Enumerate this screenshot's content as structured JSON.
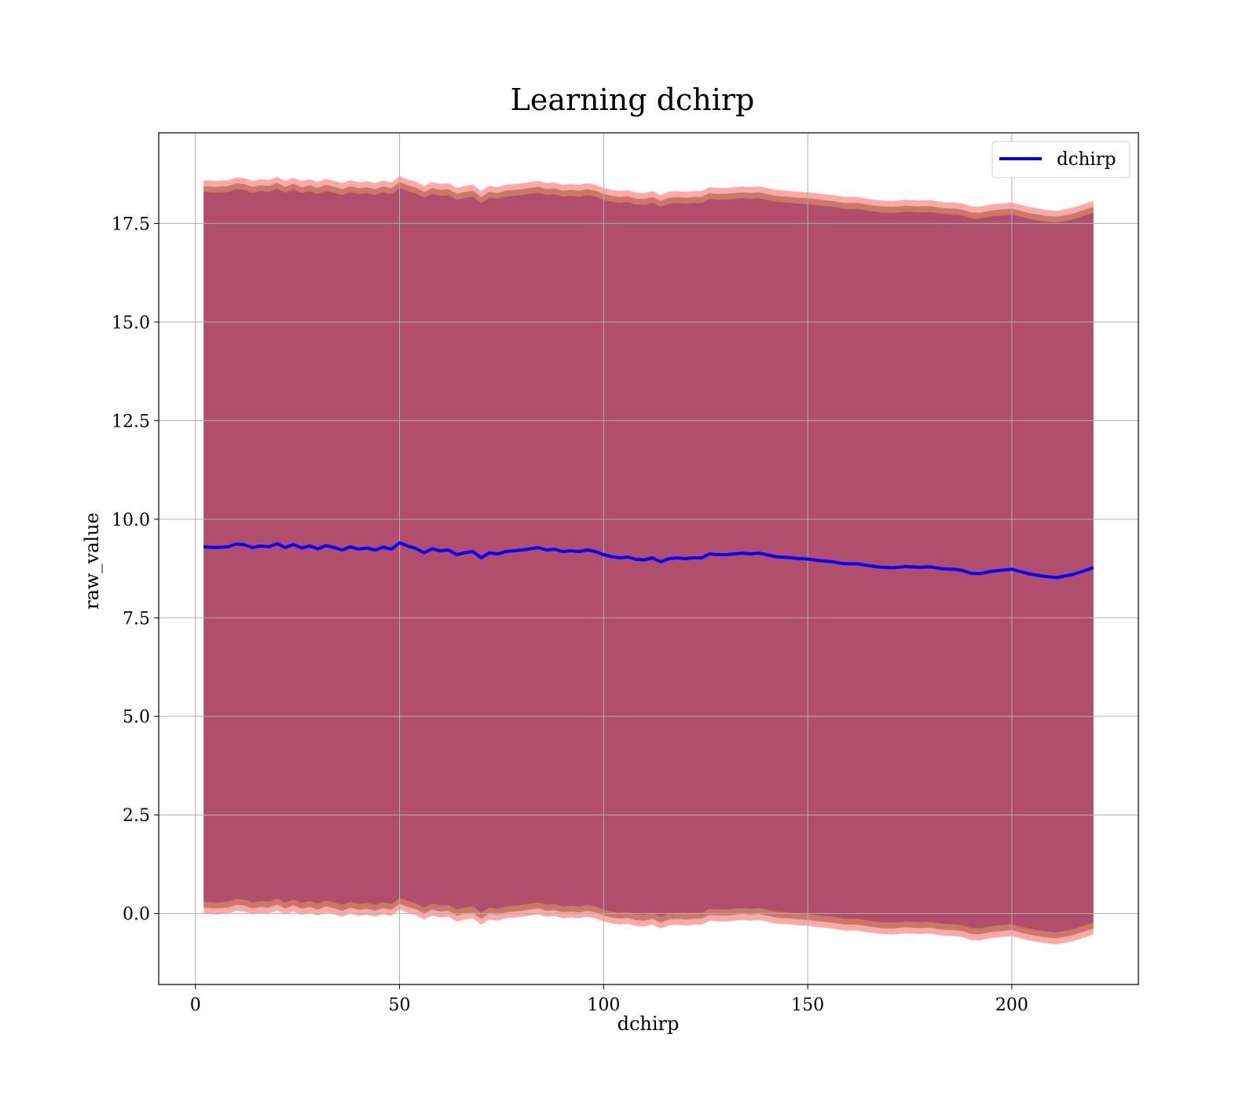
{
  "chart_data": {
    "type": "line",
    "title": "Learning dchirp",
    "xlabel": "dchirp",
    "ylabel": "raw_value",
    "xlim": [
      -9,
      231
    ],
    "ylim": [
      -1.8,
      19.8
    ],
    "xticks": [
      0,
      50,
      100,
      150,
      200
    ],
    "xtick_labels": [
      "0",
      "50",
      "100",
      "150",
      "200"
    ],
    "yticks": [
      0.0,
      2.5,
      5.0,
      7.5,
      10.0,
      12.5,
      15.0,
      17.5
    ],
    "ytick_labels": [
      "0.0",
      "2.5",
      "5.0",
      "7.5",
      "10.0",
      "12.5",
      "15.0",
      "17.5"
    ],
    "grid": true,
    "legend_position": "top-right",
    "series": [
      {
        "name": "dchirp",
        "color": "#0000ff",
        "x": [
          2,
          5,
          8,
          10,
          12,
          14,
          16,
          18,
          20,
          22,
          24,
          26,
          28,
          30,
          32,
          34,
          36,
          38,
          40,
          42,
          44,
          46,
          48,
          50,
          52,
          54,
          56,
          58,
          60,
          62,
          64,
          66,
          68,
          70,
          72,
          74,
          76,
          78,
          80,
          82,
          84,
          86,
          88,
          90,
          92,
          94,
          96,
          98,
          100,
          102,
          104,
          106,
          108,
          110,
          112,
          114,
          116,
          118,
          120,
          122,
          124,
          126,
          128,
          130,
          132,
          134,
          136,
          138,
          140,
          142,
          145,
          148,
          150,
          153,
          156,
          159,
          162,
          165,
          168,
          171,
          174,
          177,
          180,
          183,
          186,
          188,
          190,
          192,
          195,
          200,
          204,
          208,
          211,
          215,
          220
        ],
        "y": [
          9.3,
          9.28,
          9.3,
          9.37,
          9.35,
          9.28,
          9.32,
          9.3,
          9.38,
          9.28,
          9.36,
          9.27,
          9.32,
          9.25,
          9.33,
          9.28,
          9.22,
          9.3,
          9.24,
          9.27,
          9.22,
          9.29,
          9.24,
          9.4,
          9.32,
          9.26,
          9.15,
          9.25,
          9.2,
          9.22,
          9.1,
          9.15,
          9.18,
          9.02,
          9.15,
          9.12,
          9.18,
          9.2,
          9.22,
          9.25,
          9.28,
          9.22,
          9.24,
          9.18,
          9.2,
          9.18,
          9.22,
          9.18,
          9.1,
          9.05,
          9.02,
          9.04,
          8.98,
          8.97,
          9.02,
          8.92,
          9.0,
          9.02,
          9.0,
          9.02,
          9.02,
          9.12,
          9.1,
          9.1,
          9.12,
          9.14,
          9.12,
          9.14,
          9.1,
          9.05,
          9.03,
          9.0,
          8.99,
          8.95,
          8.92,
          8.87,
          8.87,
          8.82,
          8.78,
          8.77,
          8.8,
          8.78,
          8.79,
          8.74,
          8.73,
          8.7,
          8.63,
          8.62,
          8.68,
          8.73,
          8.62,
          8.55,
          8.52,
          8.6,
          8.77
        ]
      }
    ],
    "bands": [
      {
        "color": "#ff6060",
        "opacity": 0.55,
        "offset": 9.3
      },
      {
        "color": "#a0522d",
        "opacity": 0.55,
        "offset": 9.15
      },
      {
        "color": "#800080",
        "opacity": 0.35,
        "offset": 9.0
      }
    ]
  }
}
